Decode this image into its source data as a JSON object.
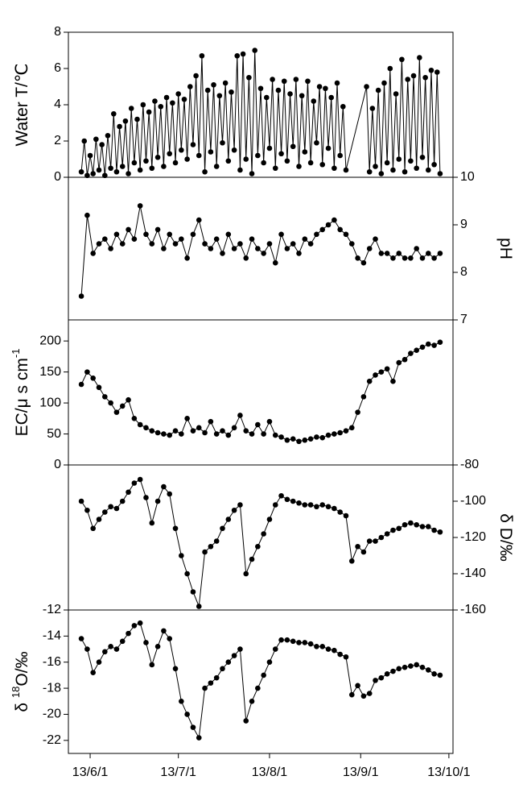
{
  "chart_data": [
    {
      "type": "line",
      "ylabel": [
        {
          "text": "Water T/℃"
        }
      ],
      "axis_side": "left",
      "color": "#000000",
      "xlim": [
        -7.4,
        123.4
      ],
      "ylim": [
        0,
        8
      ],
      "yticks": [
        0,
        2,
        4,
        6,
        8
      ],
      "x": [
        -3,
        -2,
        -1,
        0,
        1,
        2,
        3,
        4,
        5,
        6,
        7,
        8,
        9,
        10,
        11,
        12,
        13,
        14,
        15,
        16,
        17,
        18,
        19,
        20,
        21,
        22,
        23,
        24,
        25,
        26,
        27,
        28,
        29,
        30,
        31,
        32,
        33,
        34,
        35,
        36,
        37,
        38,
        39,
        40,
        41,
        42,
        43,
        44,
        45,
        46,
        47,
        48,
        49,
        50,
        51,
        52,
        53,
        54,
        55,
        56,
        57,
        58,
        59,
        60,
        61,
        62,
        63,
        64,
        65,
        66,
        67,
        68,
        69,
        70,
        71,
        72,
        73,
        74,
        75,
        76,
        77,
        78,
        79,
        80,
        81,
        82,
        83,
        84,
        85,
        86,
        87,
        94,
        95,
        96,
        97,
        98,
        99,
        100,
        101,
        102,
        103,
        104,
        105,
        106,
        107,
        108,
        109,
        110,
        111,
        112,
        113,
        114,
        115,
        116,
        117,
        118,
        119
      ],
      "values": [
        0.3,
        2.0,
        0.1,
        1.2,
        0.2,
        2.1,
        0.4,
        1.8,
        0.1,
        2.3,
        0.5,
        3.5,
        0.3,
        2.8,
        0.6,
        3.1,
        0.2,
        3.8,
        0.8,
        3.2,
        0.4,
        4.0,
        0.9,
        3.6,
        0.5,
        4.2,
        1.1,
        3.9,
        0.6,
        4.4,
        1.3,
        4.1,
        0.8,
        4.6,
        1.5,
        4.3,
        1.0,
        5.0,
        1.8,
        5.6,
        1.2,
        6.7,
        0.3,
        4.8,
        1.4,
        5.1,
        0.6,
        4.5,
        1.9,
        5.2,
        0.9,
        4.7,
        1.5,
        6.7,
        0.4,
        6.8,
        1.0,
        5.5,
        0.2,
        7.0,
        1.2,
        4.9,
        0.8,
        4.4,
        1.6,
        5.4,
        0.5,
        4.8,
        1.3,
        5.3,
        0.9,
        4.6,
        1.7,
        5.4,
        0.6,
        4.5,
        1.4,
        5.3,
        0.8,
        4.2,
        1.9,
        5.0,
        0.7,
        4.9,
        1.6,
        4.4,
        0.5,
        5.2,
        1.2,
        3.9,
        0.4,
        5.0,
        0.3,
        3.8,
        0.6,
        4.8,
        0.2,
        5.2,
        0.8,
        6.0,
        0.4,
        4.6,
        1.0,
        6.5,
        0.3,
        5.4,
        0.9,
        5.6,
        0.5,
        6.6,
        1.1,
        5.5,
        0.4,
        5.9,
        0.7,
        5.8,
        0.2
      ]
    },
    {
      "type": "line",
      "ylabel": [
        {
          "text": "pH"
        }
      ],
      "axis_side": "right",
      "color": "#000000",
      "xlim": [
        -7.4,
        123.4
      ],
      "ylim": [
        7,
        10
      ],
      "yticks": [
        7,
        8,
        9,
        10
      ],
      "x": [
        -3,
        -1,
        1,
        3,
        5,
        7,
        9,
        11,
        13,
        15,
        17,
        19,
        21,
        23,
        25,
        27,
        29,
        31,
        33,
        35,
        37,
        39,
        41,
        43,
        45,
        47,
        49,
        51,
        53,
        55,
        57,
        59,
        61,
        63,
        65,
        67,
        69,
        71,
        73,
        75,
        77,
        79,
        81,
        83,
        85,
        87,
        89,
        91,
        93,
        95,
        97,
        99,
        101,
        103,
        105,
        107,
        109,
        111,
        113,
        115,
        117,
        119
      ],
      "values": [
        7.5,
        9.2,
        8.4,
        8.6,
        8.7,
        8.5,
        8.8,
        8.6,
        8.9,
        8.7,
        9.4,
        8.8,
        8.6,
        8.9,
        8.5,
        8.8,
        8.6,
        8.7,
        8.3,
        8.8,
        9.1,
        8.6,
        8.5,
        8.7,
        8.4,
        8.8,
        8.5,
        8.6,
        8.3,
        8.7,
        8.5,
        8.4,
        8.6,
        8.2,
        8.8,
        8.5,
        8.6,
        8.4,
        8.7,
        8.6,
        8.8,
        8.9,
        9.0,
        9.1,
        8.9,
        8.8,
        8.6,
        8.3,
        8.2,
        8.5,
        8.7,
        8.4,
        8.4,
        8.3,
        8.4,
        8.3,
        8.3,
        8.5,
        8.3,
        8.4,
        8.3,
        8.4
      ]
    },
    {
      "type": "line",
      "ylabel": [
        {
          "text": "EC/μ s cm"
        },
        {
          "text": "-1",
          "sup": true
        }
      ],
      "axis_side": "left",
      "color": "#000000",
      "xlim": [
        -7.4,
        123.4
      ],
      "ylim": [
        0,
        234
      ],
      "yticks": [
        0,
        50,
        100,
        150,
        200
      ],
      "x": [
        -3,
        -1,
        1,
        3,
        5,
        7,
        9,
        11,
        13,
        15,
        17,
        19,
        21,
        23,
        25,
        27,
        29,
        31,
        33,
        35,
        37,
        39,
        41,
        43,
        45,
        47,
        49,
        51,
        53,
        55,
        57,
        59,
        61,
        63,
        65,
        67,
        69,
        71,
        73,
        75,
        77,
        79,
        81,
        83,
        85,
        87,
        89,
        91,
        93,
        95,
        97,
        99,
        101,
        103,
        105,
        107,
        109,
        111,
        113,
        115,
        117,
        119
      ],
      "values": [
        130,
        150,
        140,
        125,
        110,
        100,
        85,
        95,
        105,
        75,
        65,
        60,
        55,
        52,
        50,
        48,
        55,
        50,
        75,
        55,
        60,
        52,
        70,
        50,
        55,
        48,
        60,
        80,
        55,
        50,
        65,
        50,
        70,
        48,
        45,
        40,
        42,
        38,
        40,
        42,
        45,
        44,
        48,
        50,
        52,
        55,
        60,
        85,
        110,
        135,
        145,
        150,
        155,
        135,
        165,
        170,
        180,
        185,
        190,
        195,
        193,
        198
      ]
    },
    {
      "type": "line",
      "ylabel": [
        {
          "text": "δ D/‰"
        }
      ],
      "axis_side": "right",
      "color": "#000000",
      "xlim": [
        -7.4,
        123.4
      ],
      "ylim": [
        -160,
        -80
      ],
      "yticks": [
        -160,
        -140,
        -120,
        -100,
        -80
      ],
      "x": [
        -3,
        -1,
        1,
        3,
        5,
        7,
        9,
        11,
        13,
        15,
        17,
        19,
        21,
        23,
        25,
        27,
        29,
        31,
        33,
        35,
        37,
        39,
        41,
        43,
        45,
        47,
        49,
        51,
        53,
        55,
        57,
        59,
        61,
        63,
        65,
        67,
        69,
        71,
        73,
        75,
        77,
        79,
        81,
        83,
        85,
        87,
        89,
        91,
        93,
        95,
        97,
        99,
        101,
        103,
        105,
        107,
        109,
        111,
        113,
        115,
        117,
        119
      ],
      "values": [
        -100,
        -105,
        -115,
        -110,
        -106,
        -103,
        -104,
        -100,
        -95,
        -90,
        -88,
        -98,
        -112,
        -100,
        -92,
        -96,
        -115,
        -130,
        -140,
        -150,
        -158,
        -128,
        -125,
        -122,
        -115,
        -110,
        -105,
        -102,
        -140,
        -132,
        -125,
        -118,
        -110,
        -102,
        -97,
        -99,
        -100,
        -101,
        -102,
        -102,
        -103,
        -102,
        -103,
        -104,
        -106,
        -108,
        -133,
        -125,
        -128,
        -122,
        -122,
        -120,
        -118,
        -116,
        -115,
        -113,
        -112,
        -113,
        -114,
        -114,
        -116,
        -117
      ]
    },
    {
      "type": "line",
      "ylabel": [
        {
          "text": "δ "
        },
        {
          "text": "18",
          "sup": true
        },
        {
          "text": "O/‰"
        }
      ],
      "axis_side": "left",
      "color": "#000000",
      "xlim": [
        -7.4,
        123.4
      ],
      "ylim": [
        -23,
        -12
      ],
      "yticks": [
        -22,
        -20,
        -18,
        -16,
        -14,
        -12
      ],
      "xticks": [
        {
          "value": 0,
          "label": "13/6/1"
        },
        {
          "value": 30,
          "label": "13/7/1"
        },
        {
          "value": 61,
          "label": "13/8/1"
        },
        {
          "value": 92,
          "label": "13/9/1"
        },
        {
          "value": 122,
          "label": "13/10/1"
        }
      ],
      "x": [
        -3,
        -1,
        1,
        3,
        5,
        7,
        9,
        11,
        13,
        15,
        17,
        19,
        21,
        23,
        25,
        27,
        29,
        31,
        33,
        35,
        37,
        39,
        41,
        43,
        45,
        47,
        49,
        51,
        53,
        55,
        57,
        59,
        61,
        63,
        65,
        67,
        69,
        71,
        73,
        75,
        77,
        79,
        81,
        83,
        85,
        87,
        89,
        91,
        93,
        95,
        97,
        99,
        101,
        103,
        105,
        107,
        109,
        111,
        113,
        115,
        117,
        119
      ],
      "values": [
        -14.2,
        -15.0,
        -16.8,
        -16.0,
        -15.2,
        -14.8,
        -15.0,
        -14.4,
        -13.8,
        -13.2,
        -13.0,
        -14.5,
        -16.2,
        -14.8,
        -13.6,
        -14.2,
        -16.5,
        -19.0,
        -20.0,
        -21.0,
        -21.8,
        -18.0,
        -17.6,
        -17.2,
        -16.5,
        -16.0,
        -15.5,
        -15.0,
        -20.5,
        -19.0,
        -18.0,
        -17.0,
        -16.0,
        -15.0,
        -14.3,
        -14.3,
        -14.4,
        -14.5,
        -14.5,
        -14.6,
        -14.8,
        -14.8,
        -15.0,
        -15.1,
        -15.4,
        -15.6,
        -18.5,
        -17.8,
        -18.6,
        -18.4,
        -17.4,
        -17.2,
        -16.9,
        -16.7,
        -16.5,
        -16.4,
        -16.3,
        -16.2,
        -16.4,
        -16.6,
        -16.9,
        -17.0
      ]
    }
  ]
}
